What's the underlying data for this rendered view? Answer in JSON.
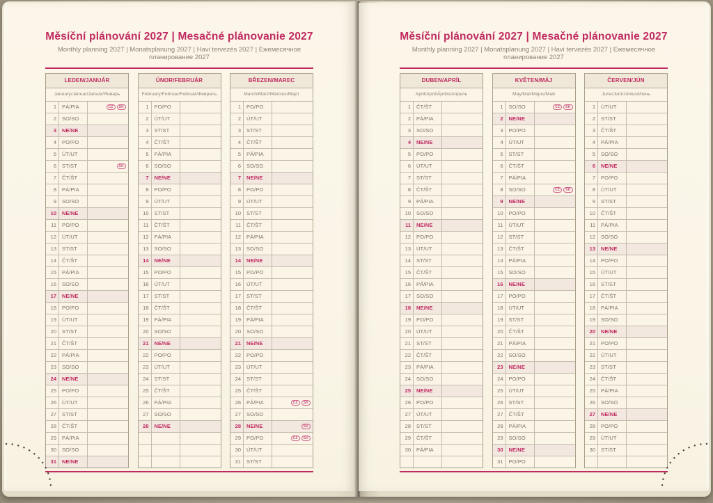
{
  "title": "Měsíční plánování 2027 | Mesačné plánovanie 2027",
  "subtitle": "Monthly planning 2027 | Monatsplanung 2027 | Havi tervezés 2027 | Ежемесячное планирование 2027",
  "accent_color": "#c02a60",
  "sunday_row_color": "#f2e8e0",
  "holiday_badge_labels": [
    "CZ",
    "SK"
  ],
  "pages": [
    {
      "side": "left",
      "months": [
        {
          "slug": "leden-januar",
          "header": "LEDEN/JANUÁR",
          "subheader": "January/Januar/Január/Январь",
          "rows": [
            [
              1,
              "PÁ/PIA",
              [
                "CZ",
                "SK"
              ]
            ],
            [
              2,
              "SO/SO"
            ],
            [
              3,
              "NE/NE"
            ],
            [
              4,
              "PO/PO"
            ],
            [
              5,
              "ÚT/UT"
            ],
            [
              6,
              "ST/ST",
              [
                "SK"
              ]
            ],
            [
              7,
              "ČT/ŠT"
            ],
            [
              8,
              "PÁ/PIA"
            ],
            [
              9,
              "SO/SO"
            ],
            [
              10,
              "NE/NE"
            ],
            [
              11,
              "PO/PO"
            ],
            [
              12,
              "ÚT/UT"
            ],
            [
              13,
              "ST/ST"
            ],
            [
              14,
              "ČT/ŠT"
            ],
            [
              15,
              "PÁ/PIA"
            ],
            [
              16,
              "SO/SO"
            ],
            [
              17,
              "NE/NE"
            ],
            [
              18,
              "PO/PO"
            ],
            [
              19,
              "ÚT/UT"
            ],
            [
              20,
              "ST/ST"
            ],
            [
              21,
              "ČT/ŠT"
            ],
            [
              22,
              "PÁ/PIA"
            ],
            [
              23,
              "SO/SO"
            ],
            [
              24,
              "NE/NE"
            ],
            [
              25,
              "PO/PO"
            ],
            [
              26,
              "ÚT/UT"
            ],
            [
              27,
              "ST/ST"
            ],
            [
              28,
              "ČT/ŠT"
            ],
            [
              29,
              "PÁ/PIA"
            ],
            [
              30,
              "SO/SO"
            ],
            [
              31,
              "NE/NE"
            ]
          ]
        },
        {
          "slug": "unor-februar",
          "header": "ÚNOR/FEBRUÁR",
          "subheader": "February/Februar/Február/Февраль",
          "rows": [
            [
              1,
              "PO/PO"
            ],
            [
              2,
              "ÚT/UT"
            ],
            [
              3,
              "ST/ST"
            ],
            [
              4,
              "ČT/ŠT"
            ],
            [
              5,
              "PÁ/PIA"
            ],
            [
              6,
              "SO/SO"
            ],
            [
              7,
              "NE/NE"
            ],
            [
              8,
              "PO/PO"
            ],
            [
              9,
              "ÚT/UT"
            ],
            [
              10,
              "ST/ST"
            ],
            [
              11,
              "ČT/ŠT"
            ],
            [
              12,
              "PÁ/PIA"
            ],
            [
              13,
              "SO/SO"
            ],
            [
              14,
              "NE/NE"
            ],
            [
              15,
              "PO/PO"
            ],
            [
              16,
              "ÚT/UT"
            ],
            [
              17,
              "ST/ST"
            ],
            [
              18,
              "ČT/ŠT"
            ],
            [
              19,
              "PÁ/PIA"
            ],
            [
              20,
              "SO/SO"
            ],
            [
              21,
              "NE/NE"
            ],
            [
              22,
              "PO/PO"
            ],
            [
              23,
              "ÚT/UT"
            ],
            [
              24,
              "ST/ST"
            ],
            [
              25,
              "ČT/ŠT"
            ],
            [
              26,
              "PÁ/PIA"
            ],
            [
              27,
              "SO/SO"
            ],
            [
              28,
              "NE/NE"
            ],
            null,
            null,
            null
          ]
        },
        {
          "slug": "brezen-marec",
          "header": "BŘEZEN/MAREC",
          "subheader": "March/März/Március/Март",
          "rows": [
            [
              1,
              "PO/PO"
            ],
            [
              2,
              "ÚT/UT"
            ],
            [
              3,
              "ST/ST"
            ],
            [
              4,
              "ČT/ŠT"
            ],
            [
              5,
              "PÁ/PIA"
            ],
            [
              6,
              "SO/SO"
            ],
            [
              7,
              "NE/NE"
            ],
            [
              8,
              "PO/PO"
            ],
            [
              9,
              "ÚT/UT"
            ],
            [
              10,
              "ST/ST"
            ],
            [
              11,
              "ČT/ŠT"
            ],
            [
              12,
              "PÁ/PIA"
            ],
            [
              13,
              "SO/SO"
            ],
            [
              14,
              "NE/NE"
            ],
            [
              15,
              "PO/PO"
            ],
            [
              16,
              "ÚT/UT"
            ],
            [
              17,
              "ST/ST"
            ],
            [
              18,
              "ČT/ŠT"
            ],
            [
              19,
              "PÁ/PIA"
            ],
            [
              20,
              "SO/SO"
            ],
            [
              21,
              "NE/NE"
            ],
            [
              22,
              "PO/PO"
            ],
            [
              23,
              "ÚT/UT"
            ],
            [
              24,
              "ST/ST"
            ],
            [
              25,
              "ČT/ŠT"
            ],
            [
              26,
              "PÁ/PIA",
              [
                "CZ",
                "SK"
              ]
            ],
            [
              27,
              "SO/SO"
            ],
            [
              28,
              "NE/NE",
              [
                "SK"
              ]
            ],
            [
              29,
              "PO/PO",
              [
                "CZ",
                "SK"
              ]
            ],
            [
              30,
              "ÚT/UT"
            ],
            [
              31,
              "ST/ST"
            ]
          ]
        }
      ]
    },
    {
      "side": "right",
      "months": [
        {
          "slug": "duben-april",
          "header": "DUBEN/APRÍL",
          "subheader": "April/April/Április/Апрель",
          "rows": [
            [
              1,
              "ČT/ŠT"
            ],
            [
              2,
              "PÁ/PIA"
            ],
            [
              3,
              "SO/SO"
            ],
            [
              4,
              "NE/NE"
            ],
            [
              5,
              "PO/PO"
            ],
            [
              6,
              "ÚT/UT"
            ],
            [
              7,
              "ST/ST"
            ],
            [
              8,
              "ČT/ŠT"
            ],
            [
              9,
              "PÁ/PIA"
            ],
            [
              10,
              "SO/SO"
            ],
            [
              11,
              "NE/NE"
            ],
            [
              12,
              "PO/PO"
            ],
            [
              13,
              "ÚT/UT"
            ],
            [
              14,
              "ST/ST"
            ],
            [
              15,
              "ČT/ŠT"
            ],
            [
              16,
              "PÁ/PIA"
            ],
            [
              17,
              "SO/SO"
            ],
            [
              18,
              "NE/NE"
            ],
            [
              19,
              "PO/PO"
            ],
            [
              20,
              "ÚT/UT"
            ],
            [
              21,
              "ST/ST"
            ],
            [
              22,
              "ČT/ŠT"
            ],
            [
              23,
              "PÁ/PIA"
            ],
            [
              24,
              "SO/SO"
            ],
            [
              25,
              "NE/NE"
            ],
            [
              26,
              "PO/PO"
            ],
            [
              27,
              "ÚT/UT"
            ],
            [
              28,
              "ST/ST"
            ],
            [
              29,
              "ČT/ŠT"
            ],
            [
              30,
              "PÁ/PIA"
            ],
            null
          ]
        },
        {
          "slug": "kveten-maj",
          "header": "KVĚTEN/MÁJ",
          "subheader": "May/Mai/Május/Май",
          "rows": [
            [
              1,
              "SO/SO",
              [
                "CZ",
                "SK"
              ]
            ],
            [
              2,
              "NE/NE"
            ],
            [
              3,
              "PO/PO"
            ],
            [
              4,
              "ÚT/UT"
            ],
            [
              5,
              "ST/ST"
            ],
            [
              6,
              "ČT/ŠT"
            ],
            [
              7,
              "PÁ/PIA"
            ],
            [
              8,
              "SO/SO",
              [
                "CZ",
                "SK"
              ]
            ],
            [
              9,
              "NE/NE"
            ],
            [
              10,
              "PO/PO"
            ],
            [
              11,
              "ÚT/UT"
            ],
            [
              12,
              "ST/ST"
            ],
            [
              13,
              "ČT/ŠT"
            ],
            [
              14,
              "PÁ/PIA"
            ],
            [
              15,
              "SO/SO"
            ],
            [
              16,
              "NE/NE"
            ],
            [
              17,
              "PO/PO"
            ],
            [
              18,
              "ÚT/UT"
            ],
            [
              19,
              "ST/ST"
            ],
            [
              20,
              "ČT/ŠT"
            ],
            [
              21,
              "PÁ/PIA"
            ],
            [
              22,
              "SO/SO"
            ],
            [
              23,
              "NE/NE"
            ],
            [
              24,
              "PO/PO"
            ],
            [
              25,
              "ÚT/UT"
            ],
            [
              26,
              "ST/ST"
            ],
            [
              27,
              "ČT/ŠT"
            ],
            [
              28,
              "PÁ/PIA"
            ],
            [
              29,
              "SO/SO"
            ],
            [
              30,
              "NE/NE"
            ],
            [
              31,
              "PO/PO"
            ]
          ]
        },
        {
          "slug": "cerven-jun",
          "header": "ČERVEN/JÚN",
          "subheader": "June/Juni/Június/Июнь",
          "rows": [
            [
              1,
              "ÚT/UT"
            ],
            [
              2,
              "ST/ST"
            ],
            [
              3,
              "ČT/ŠT"
            ],
            [
              4,
              "PÁ/PIA"
            ],
            [
              5,
              "SO/SO"
            ],
            [
              6,
              "NE/NE"
            ],
            [
              7,
              "PO/PO"
            ],
            [
              8,
              "ÚT/UT"
            ],
            [
              9,
              "ST/ST"
            ],
            [
              10,
              "ČT/ŠT"
            ],
            [
              11,
              "PÁ/PIA"
            ],
            [
              12,
              "SO/SO"
            ],
            [
              13,
              "NE/NE"
            ],
            [
              14,
              "PO/PO"
            ],
            [
              15,
              "ÚT/UT"
            ],
            [
              16,
              "ST/ST"
            ],
            [
              17,
              "ČT/ŠT"
            ],
            [
              18,
              "PÁ/PIA"
            ],
            [
              19,
              "SO/SO"
            ],
            [
              20,
              "NE/NE"
            ],
            [
              21,
              "PO/PO"
            ],
            [
              22,
              "ÚT/UT"
            ],
            [
              23,
              "ST/ST"
            ],
            [
              24,
              "ČT/ŠT"
            ],
            [
              25,
              "PÁ/PIA"
            ],
            [
              26,
              "SO/SO"
            ],
            [
              27,
              "NE/NE"
            ],
            [
              28,
              "PO/PO"
            ],
            [
              29,
              "ÚT/UT"
            ],
            [
              30,
              "ST/ST"
            ],
            null
          ]
        }
      ]
    }
  ]
}
